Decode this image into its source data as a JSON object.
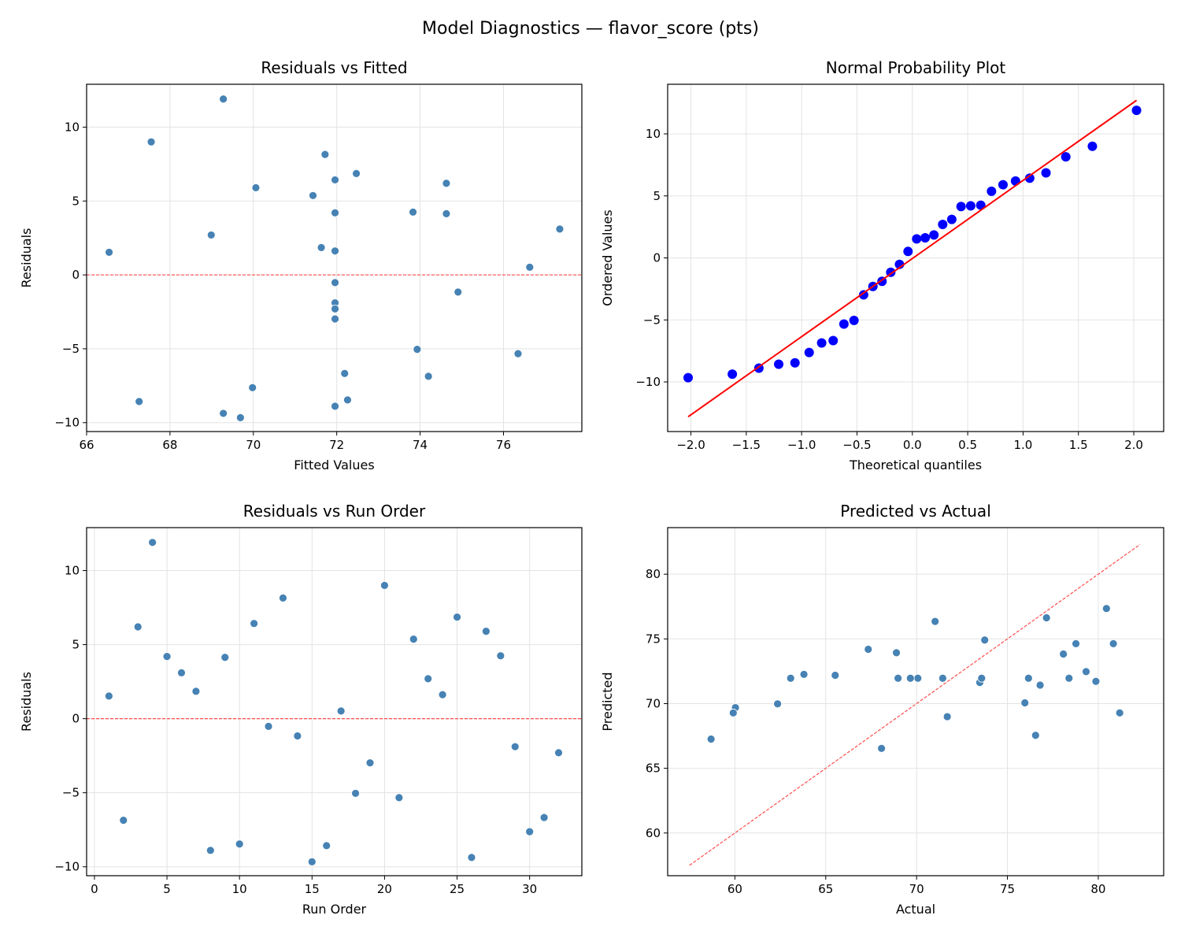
{
  "suptitle": "Model Diagnostics — flavor_score (pts)",
  "chart_data": [
    {
      "type": "scatter",
      "title": "Residuals vs Fitted",
      "xlabel": "Fitted Values",
      "ylabel": "Residuals",
      "xlim": [
        66.0,
        77.88
      ],
      "ylim": [
        -10.6,
        12.9
      ],
      "xticks": [
        66,
        68,
        70,
        72,
        74,
        76
      ],
      "xtick_labels": [
        "66",
        "68",
        "70",
        "72",
        "74",
        "76"
      ],
      "yticks": [
        -10,
        -5,
        0,
        5,
        10
      ],
      "ytick_labels": [
        "−10",
        "−5",
        "0",
        "5",
        "10"
      ],
      "grid": true,
      "marker_color": "#4682b4",
      "x": [
        66.54,
        74.2,
        74.63,
        69.28,
        71.96,
        77.35,
        71.63,
        71.96,
        74.63,
        72.26,
        71.96,
        71.96,
        71.72,
        74.91,
        69.69,
        67.26,
        76.63,
        73.93,
        71.96,
        67.55,
        76.35,
        71.43,
        68.99,
        71.96,
        72.47,
        69.28,
        70.06,
        73.83,
        71.96,
        69.98,
        72.19,
        71.96
      ],
      "y": [
        1.53,
        -6.86,
        6.2,
        11.9,
        4.2,
        3.1,
        1.85,
        -8.89,
        4.14,
        -8.46,
        6.43,
        -0.52,
        8.15,
        -1.16,
        -9.66,
        -8.57,
        0.52,
        -5.04,
        -2.98,
        9.0,
        -5.33,
        5.37,
        2.7,
        1.62,
        6.86,
        -9.37,
        5.9,
        4.25,
        -1.89,
        -7.63,
        -6.67,
        -2.3
      ],
      "reference_line": {
        "kind": "horizontal",
        "y": 0,
        "style": "dashed",
        "color": "#ff4d4d"
      }
    },
    {
      "type": "scatter",
      "title": "Normal Probability Plot",
      "xlabel": "Theoretical quantiles",
      "ylabel": "Ordered Values",
      "xlim": [
        -2.21,
        2.27
      ],
      "ylim": [
        -14.0,
        14.0
      ],
      "xticks": [
        -2.0,
        -1.5,
        -1.0,
        -0.5,
        0.0,
        0.5,
        1.0,
        1.5,
        2.0
      ],
      "xtick_labels": [
        "−2.0",
        "−1.5",
        "−1.0",
        "−0.5",
        "0.0",
        "0.5",
        "1.0",
        "1.5",
        "2.0"
      ],
      "yticks": [
        -10,
        -5,
        0,
        5,
        10
      ],
      "ytick_labels": [
        "−10",
        "−5",
        "0",
        "5",
        "10"
      ],
      "grid": true,
      "marker_color": "#0000ff",
      "x": [
        -2.025,
        -1.626,
        -1.386,
        -1.207,
        -1.06,
        -0.932,
        -0.819,
        -0.715,
        -0.618,
        -0.527,
        -0.44,
        -0.356,
        -0.274,
        -0.195,
        -0.116,
        -0.039,
        0.039,
        0.116,
        0.195,
        0.274,
        0.356,
        0.44,
        0.527,
        0.618,
        0.715,
        0.819,
        0.932,
        1.06,
        1.207,
        1.386,
        1.626,
        2.025
      ],
      "y": [
        -9.66,
        -9.37,
        -8.89,
        -8.57,
        -8.46,
        -7.63,
        -6.86,
        -6.67,
        -5.33,
        -5.04,
        -2.98,
        -2.3,
        -1.89,
        -1.16,
        -0.52,
        0.52,
        1.53,
        1.62,
        1.85,
        2.7,
        3.1,
        4.14,
        4.2,
        4.25,
        5.37,
        5.9,
        6.2,
        6.43,
        6.86,
        8.15,
        9.0,
        11.9
      ],
      "reference_line": {
        "kind": "least-squares fit",
        "style": "solid",
        "color": "#ff0000"
      }
    },
    {
      "type": "scatter",
      "title": "Residuals vs Run Order",
      "xlabel": "Run Order",
      "ylabel": "Residuals",
      "xlim": [
        -0.54,
        33.6
      ],
      "ylim": [
        -10.6,
        12.9
      ],
      "xticks": [
        0,
        5,
        10,
        15,
        20,
        25,
        30
      ],
      "xtick_labels": [
        "0",
        "5",
        "10",
        "15",
        "20",
        "25",
        "30"
      ],
      "yticks": [
        -10,
        -5,
        0,
        5,
        10
      ],
      "ytick_labels": [
        "−10",
        "−5",
        "0",
        "5",
        "10"
      ],
      "grid": true,
      "marker_color": "#4682b4",
      "x": [
        1,
        2,
        3,
        4,
        5,
        6,
        7,
        8,
        9,
        10,
        11,
        12,
        13,
        14,
        15,
        16,
        17,
        18,
        19,
        20,
        21,
        22,
        23,
        24,
        25,
        26,
        27,
        28,
        29,
        30,
        31,
        32
      ],
      "y": [
        1.53,
        -6.86,
        6.2,
        11.9,
        4.2,
        3.1,
        1.85,
        -8.89,
        4.14,
        -8.46,
        6.43,
        -0.52,
        8.15,
        -1.16,
        -9.66,
        -8.57,
        0.52,
        -5.04,
        -2.98,
        9.0,
        -5.33,
        5.37,
        2.7,
        1.62,
        6.86,
        -9.37,
        5.9,
        4.25,
        -1.89,
        -7.63,
        -6.67,
        -2.3
      ],
      "reference_line": {
        "kind": "horizontal",
        "y": 0,
        "style": "dashed",
        "color": "#ff4d4d"
      }
    },
    {
      "type": "scatter",
      "title": "Predicted vs Actual",
      "xlabel": "Actual",
      "ylabel": "Predicted",
      "xlim": [
        56.3,
        83.6
      ],
      "ylim": [
        56.7,
        83.6
      ],
      "xticks": [
        60,
        65,
        70,
        75,
        80
      ],
      "xtick_labels": [
        "60",
        "65",
        "70",
        "75",
        "80"
      ],
      "yticks": [
        60,
        65,
        70,
        75,
        80
      ],
      "ytick_labels": [
        "60",
        "65",
        "70",
        "75",
        "80"
      ],
      "grid": true,
      "marker_color": "#4682b4",
      "x": [
        68.07,
        67.34,
        80.83,
        81.18,
        76.16,
        80.45,
        73.48,
        63.07,
        78.77,
        63.8,
        78.39,
        71.44,
        79.87,
        73.75,
        60.03,
        58.69,
        77.15,
        68.89,
        68.98,
        76.55,
        71.02,
        76.8,
        71.69,
        73.58,
        79.33,
        59.91,
        75.96,
        78.08,
        70.07,
        62.35,
        65.52,
        69.66
      ],
      "y": [
        66.54,
        74.2,
        74.63,
        69.28,
        71.96,
        77.35,
        71.63,
        71.96,
        74.63,
        72.26,
        71.96,
        71.96,
        71.72,
        74.91,
        69.69,
        67.26,
        76.63,
        73.93,
        71.96,
        67.55,
        76.35,
        71.43,
        68.99,
        71.96,
        72.47,
        69.28,
        70.06,
        73.83,
        71.96,
        69.98,
        72.19,
        71.96
      ],
      "reference_line": {
        "kind": "identity y=x",
        "from": 57.5,
        "to": 82.3,
        "style": "dashed",
        "color": "#ff4d4d"
      }
    }
  ]
}
